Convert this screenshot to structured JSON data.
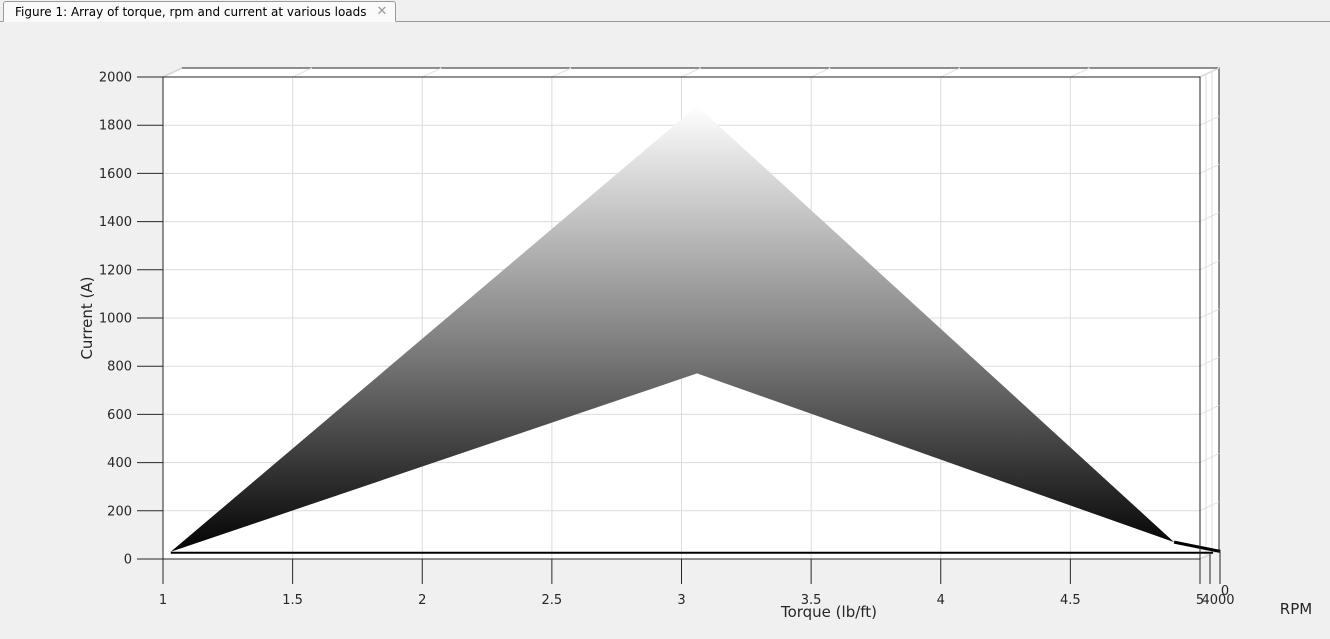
{
  "window": {
    "tab_label": "Figure 1: Array of torque, rpm and current at various loads",
    "close_glyph": "✕"
  },
  "chart_data": {
    "type": "surface",
    "title": "",
    "xlabel": "Torque (lb/ft)",
    "ylabel": "Current (A)",
    "zlabel": "RPM",
    "xlim": [
      1,
      5
    ],
    "ylim": [
      0,
      2000
    ],
    "x_ticks": [
      "1",
      "1.5",
      "2",
      "2.5",
      "3",
      "3.5",
      "4",
      "4.5",
      "5"
    ],
    "y_ticks": [
      "0",
      "200",
      "400",
      "600",
      "800",
      "1000",
      "1200",
      "1400",
      "1600",
      "1800",
      "2000"
    ],
    "depth_ticks": [
      "4000",
      "0"
    ],
    "grid": true,
    "colormap": "gray",
    "surface": {
      "x": [
        1.03,
        3.06,
        4.9,
        5.05
      ],
      "upper_current": [
        30,
        1880,
        70,
        40
      ],
      "lower_current": [
        30,
        770,
        70,
        40
      ]
    }
  }
}
